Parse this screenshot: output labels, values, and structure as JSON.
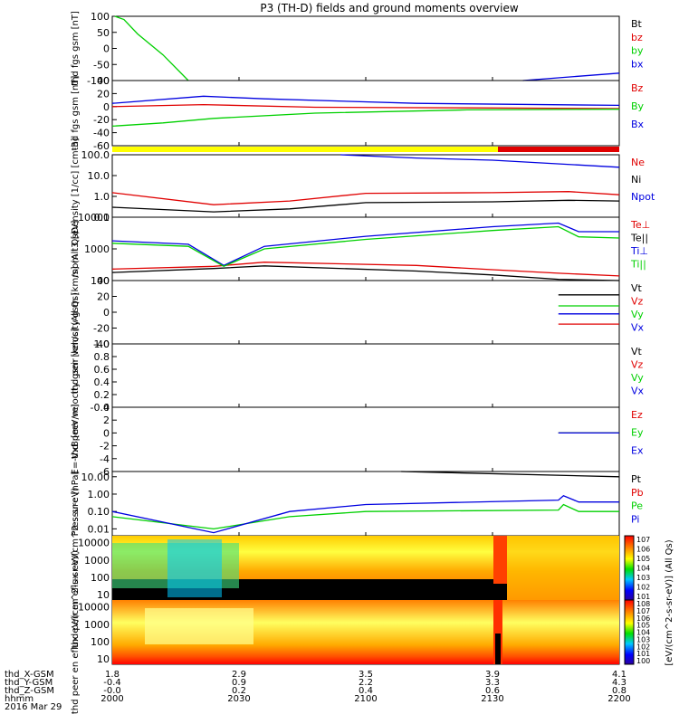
{
  "title": "P3 (TH-D) fields and ground moments overview",
  "colors": {
    "black": "#000000",
    "red": "#e00000",
    "green": "#00d000",
    "blue": "#0000e0",
    "yellow": "#ffff00",
    "bar_red": "#e00000"
  },
  "x_axis": {
    "ticks": [
      "2000",
      "2030",
      "2100",
      "2130",
      "2200"
    ],
    "rows": [
      {
        "label": "thd_X-GSM",
        "values": [
          "1.8",
          "2.9",
          "3.5",
          "3.9",
          "4.1"
        ]
      },
      {
        "label": "thd_Y-GSM",
        "values": [
          "-0.4",
          "0.9",
          "2.2",
          "3.3",
          "4.3"
        ]
      },
      {
        "label": "thd_Z-GSM",
        "values": [
          "-0.0",
          "0.2",
          "0.4",
          "0.6",
          "0.8"
        ]
      },
      {
        "label": "hhmm",
        "values": [
          "2000",
          "2030",
          "2100",
          "2130",
          "2200"
        ]
      }
    ],
    "date": "2016 Mar 29"
  },
  "colorbar": {
    "label": "[eV/(cm^2-s-sr-eV)] (All Qs)",
    "top_ticks": [
      "10^7",
      "10^6",
      "10^5",
      "10^4",
      "10^3",
      "10^2",
      "10^1"
    ],
    "bottom_ticks": [
      "10^8",
      "10^7",
      "10^6",
      "10^5",
      "10^4",
      "10^3",
      "10^2",
      "10^1",
      "10^0"
    ]
  },
  "chart_data": [
    {
      "type": "line",
      "panel": "fgs_gsm_top",
      "ylabel": "thd fgs gsm [nT]",
      "ylim": [
        -100,
        100
      ],
      "yticks": [
        "100",
        "50",
        "0",
        "-50",
        "-100"
      ],
      "series": [
        {
          "name": "Bt",
          "color": "#000000",
          "values": []
        },
        {
          "name": "bz",
          "color": "#e00000",
          "values": []
        },
        {
          "name": "by",
          "color": "#00d000",
          "values": [
            [
              0.5,
              100
            ],
            [
              2.3,
              90
            ],
            [
              5,
              45
            ],
            [
              10,
              -20
            ],
            [
              15,
              -100
            ]
          ]
        },
        {
          "name": "bx",
          "color": "#0000e0",
          "values": [
            [
              81,
              -100
            ],
            [
              100,
              -77
            ]
          ]
        }
      ]
    },
    {
      "type": "line",
      "panel": "fgs_gsm_bottom",
      "ylabel": "thd fgs gsm [nT]",
      "ylim": [
        -60,
        40
      ],
      "yticks": [
        "40",
        "20",
        "0",
        "-20",
        "-40",
        "-60"
      ],
      "series": [
        {
          "name": "Bz",
          "color": "#e00000",
          "values": [
            [
              0,
              0
            ],
            [
              18,
              3
            ],
            [
              40,
              -1
            ],
            [
              70,
              -2
            ],
            [
              100,
              -3
            ]
          ]
        },
        {
          "name": "By",
          "color": "#00d000",
          "values": [
            [
              0,
              -30
            ],
            [
              10,
              -25
            ],
            [
              20,
              -18
            ],
            [
              40,
              -10
            ],
            [
              70,
              -5
            ],
            [
              100,
              -4
            ]
          ]
        },
        {
          "name": "Bx",
          "color": "#0000e0",
          "values": [
            [
              0,
              5
            ],
            [
              18,
              16
            ],
            [
              30,
              12
            ],
            [
              60,
              5
            ],
            [
              100,
              2
            ]
          ]
        }
      ]
    },
    {
      "type": "line",
      "panel": "density",
      "ylabel": "Density [1/cc] [cm-3]",
      "ylim": [
        0.1,
        100
      ],
      "log": true,
      "yticks": [
        "100.0",
        "10.0",
        "1.0",
        "0.1"
      ],
      "series": [
        {
          "name": "Ne",
          "color": "#e00000",
          "values": [
            [
              0,
              1.5
            ],
            [
              20,
              0.4
            ],
            [
              35,
              0.6
            ],
            [
              50,
              1.4
            ],
            [
              75,
              1.5
            ],
            [
              90,
              1.7
            ],
            [
              100,
              1.2
            ]
          ]
        },
        {
          "name": "Ni",
          "color": "#000000",
          "values": [
            [
              0,
              0.3
            ],
            [
              20,
              0.18
            ],
            [
              35,
              0.25
            ],
            [
              50,
              0.5
            ],
            [
              75,
              0.55
            ],
            [
              90,
              0.65
            ],
            [
              100,
              0.6
            ]
          ]
        },
        {
          "name": "Npot",
          "color": "#0000e0",
          "values": [
            [
              45,
              100
            ],
            [
              60,
              70
            ],
            [
              75,
              55
            ],
            [
              100,
              25
            ]
          ]
        }
      ]
    },
    {
      "type": "line",
      "panel": "temperature",
      "ylabel": "mom t3 [eV]",
      "ylim": [
        100,
        10000
      ],
      "log": true,
      "yticks": [
        "10000",
        "1000",
        "100"
      ],
      "series": [
        {
          "name": "Te⊥",
          "color": "#e00000",
          "values": [
            [
              0,
              230
            ],
            [
              20,
              280
            ],
            [
              30,
              380
            ],
            [
              60,
              300
            ],
            [
              75,
              220
            ],
            [
              88,
              170
            ],
            [
              100,
              140
            ]
          ]
        },
        {
          "name": "Te||",
          "color": "#000000",
          "values": [
            [
              0,
              180
            ],
            [
              20,
              240
            ],
            [
              30,
              290
            ],
            [
              60,
              200
            ],
            [
              75,
              150
            ],
            [
              88,
              110
            ],
            [
              100,
              100
            ]
          ]
        },
        {
          "name": "Ti⊥",
          "color": "#0000e0",
          "values": [
            [
              0,
              1800
            ],
            [
              15,
              1400
            ],
            [
              22,
              300
            ],
            [
              30,
              1200
            ],
            [
              50,
              2500
            ],
            [
              75,
              5000
            ],
            [
              88,
              6500
            ],
            [
              92,
              3500
            ],
            [
              100,
              3500
            ]
          ]
        },
        {
          "name": "Ti||",
          "color": "#00d000",
          "values": [
            [
              0,
              1500
            ],
            [
              15,
              1200
            ],
            [
              22,
              280
            ],
            [
              30,
              1000
            ],
            [
              50,
              2000
            ],
            [
              75,
              3800
            ],
            [
              88,
              5000
            ],
            [
              92,
              2400
            ],
            [
              100,
              2200
            ]
          ]
        }
      ]
    },
    {
      "type": "line",
      "panel": "peir_velocity",
      "ylabel": "thd peir velocity gsm [km/s] (All Qs)",
      "ylim": [
        -40,
        40
      ],
      "yticks": [
        "40",
        "20",
        "0",
        "-20",
        "-40"
      ],
      "series": [
        {
          "name": "Vt",
          "color": "#000000",
          "values": [
            [
              88,
              22
            ],
            [
              100,
              22
            ]
          ]
        },
        {
          "name": "Vz",
          "color": "#e00000",
          "values": [
            [
              88,
              -15
            ],
            [
              100,
              -15
            ]
          ]
        },
        {
          "name": "Vy",
          "color": "#00d000",
          "values": [
            [
              88,
              8
            ],
            [
              100,
              8
            ]
          ]
        },
        {
          "name": "Vx",
          "color": "#0000e0",
          "values": [
            [
              88,
              -2
            ],
            [
              100,
              -2
            ]
          ]
        }
      ]
    },
    {
      "type": "line",
      "panel": "peer_velocity",
      "ylabel": "thd peer velocity gsm [km/s] (All Qs)",
      "ylim": [
        -0.0,
        1.0
      ],
      "yticks": [
        "1.0",
        "0.8",
        "0.6",
        "0.4",
        "0.2",
        "-0.0"
      ],
      "series": [
        {
          "name": "Vt",
          "color": "#000000",
          "values": []
        },
        {
          "name": "Vz",
          "color": "#e00000",
          "values": []
        },
        {
          "name": "Vy",
          "color": "#00d000",
          "values": []
        },
        {
          "name": "Vx",
          "color": "#0000e0",
          "values": []
        }
      ]
    },
    {
      "type": "line",
      "panel": "efield",
      "ylabel": "E=-VxB [mV/m]",
      "ylim": [
        -6,
        4
      ],
      "yticks": [
        "4",
        "2",
        "0",
        "-2",
        "-4",
        "-6"
      ],
      "series": [
        {
          "name": "Ez",
          "color": "#e00000",
          "values": [
            [
              88,
              0
            ],
            [
              100,
              0
            ]
          ]
        },
        {
          "name": "Ey",
          "color": "#00d000",
          "values": [
            [
              88,
              0
            ],
            [
              100,
              0
            ]
          ]
        },
        {
          "name": "Ex",
          "color": "#0000e0",
          "values": [
            [
              88,
              0
            ],
            [
              100,
              0
            ]
          ]
        }
      ]
    },
    {
      "type": "line",
      "panel": "pressure",
      "ylabel": "Pressure [nPa]",
      "ylim": [
        0.004,
        20
      ],
      "log": true,
      "yticks": [
        "10.00",
        "1.00",
        "0.10",
        "0.01"
      ],
      "series": [
        {
          "name": "Pt",
          "color": "#000000",
          "values": [
            [
              57,
              20
            ],
            [
              100,
              10
            ]
          ]
        },
        {
          "name": "Pb",
          "color": "#e00000",
          "values": []
        },
        {
          "name": "Pe",
          "color": "#00d000",
          "values": [
            [
              0,
              0.05
            ],
            [
              20,
              0.01
            ],
            [
              35,
              0.05
            ],
            [
              50,
              0.1
            ],
            [
              88,
              0.12
            ],
            [
              89,
              0.25
            ],
            [
              92,
              0.1
            ],
            [
              100,
              0.1
            ]
          ]
        },
        {
          "name": "Pi",
          "color": "#0000e0",
          "values": [
            [
              0,
              0.1
            ],
            [
              20,
              0.006
            ],
            [
              35,
              0.1
            ],
            [
              50,
              0.25
            ],
            [
              88,
              0.45
            ],
            [
              89,
              0.8
            ],
            [
              92,
              0.35
            ],
            [
              100,
              0.35
            ]
          ]
        }
      ]
    },
    {
      "type": "heatmap",
      "panel": "peir_eflux",
      "ylabel": "thd peir en eflux eV/(cm^2-s-sr-eV)",
      "ylim": [
        5,
        25000
      ],
      "log": true,
      "yticks": [
        "10000",
        "1000",
        "100",
        "10"
      ]
    },
    {
      "type": "heatmap",
      "panel": "peer_eflux",
      "ylabel": "thd peer en eflux eV/(cm^2-s-sr-eV)",
      "ylim": [
        5,
        25000
      ],
      "log": true,
      "yticks": [
        "10000",
        "1000",
        "100",
        "10"
      ]
    }
  ]
}
